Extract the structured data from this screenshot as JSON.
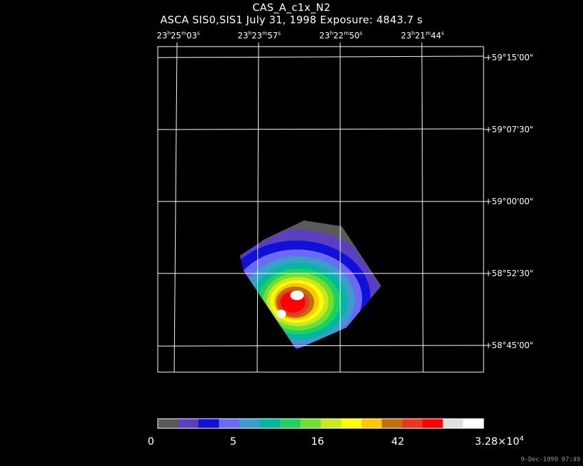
{
  "title": "CAS_A_c1x_N2",
  "subtitle": "ASCA SIS0,SIS1 July 31, 1998 Exposure: 4843.7 s",
  "ra_ticks": [
    {
      "h": "23",
      "m": "25",
      "s": "03"
    },
    {
      "h": "23",
      "m": "23",
      "s": "57"
    },
    {
      "h": "23",
      "m": "22",
      "s": "50"
    },
    {
      "h": "23",
      "m": "21",
      "s": "44"
    }
  ],
  "dec_ticks": [
    "+59°15'00\"",
    "+59°07'30\"",
    "+59°00'00\"",
    "+58°52'30\"",
    "+58°45'00\""
  ],
  "colorbar": {
    "colors": [
      "#5a5a5a",
      "#5b3fbf",
      "#1010d8",
      "#6a6af4",
      "#3c9ccc",
      "#00b8a0",
      "#20d060",
      "#70e030",
      "#c8e820",
      "#ffff00",
      "#ffc800",
      "#c07010",
      "#e83820",
      "#ff0000",
      "#e0e0e0",
      "#ffffff"
    ],
    "labels": [
      "0",
      "5",
      "16",
      "42"
    ],
    "max_label": {
      "mantissa": "3.28×10",
      "exponent": "4"
    }
  },
  "timestamp": "9-Dec-1999 07:49"
}
